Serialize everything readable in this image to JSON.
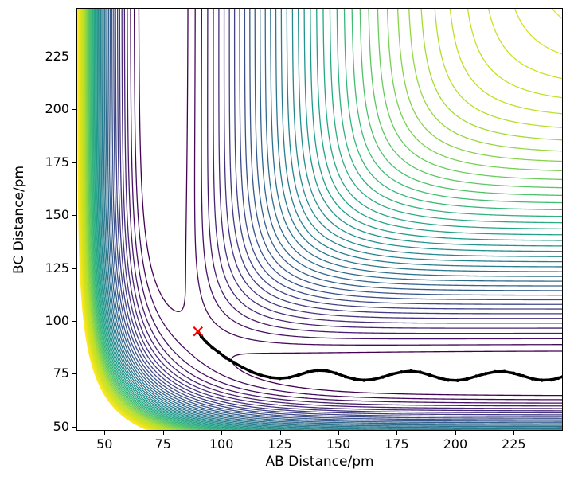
{
  "chart_data": {
    "type": "contour",
    "title": "",
    "xlabel": "AB Distance/pm",
    "ylabel": "BC Distance/pm",
    "xlim": [
      38,
      246
    ],
    "ylim": [
      48,
      248
    ],
    "xticks": [
      50,
      75,
      100,
      125,
      150,
      175,
      200,
      225
    ],
    "yticks": [
      50,
      75,
      100,
      125,
      150,
      175,
      200,
      225
    ],
    "grid": false,
    "legend": "none",
    "colormap": "viridis",
    "colormap_stops": [
      "#440154",
      "#482878",
      "#3e4989",
      "#31688e",
      "#26828e",
      "#1f9e89",
      "#35b779",
      "#6ece58",
      "#b5de2b",
      "#d8e219",
      "#fde725"
    ],
    "n_levels": 46,
    "level_min": -4.55,
    "level_max": -0.05,
    "potential": {
      "model": "LEPS",
      "D": 4.7466,
      "beta": 0.01942,
      "r0": 74.1,
      "sato": 0.18
    },
    "saddle_marker": {
      "x": 90,
      "y": 95,
      "color": "#ff0000",
      "symbol": "x"
    },
    "trajectory": {
      "color": "#000000",
      "points": [
        [
          90,
          95
        ],
        [
          91.5,
          92.5
        ],
        [
          93.5,
          90
        ],
        [
          96,
          87.5
        ],
        [
          99,
          85
        ],
        [
          102,
          82.5
        ],
        [
          105.5,
          80.2
        ],
        [
          109,
          78
        ],
        [
          113,
          75.8
        ],
        [
          117,
          74.2
        ],
        [
          121,
          73.2
        ],
        [
          125,
          72.8
        ],
        [
          129,
          73.2
        ],
        [
          133,
          74.4
        ],
        [
          137,
          75.8
        ],
        [
          141,
          76.6
        ],
        [
          145,
          76.4
        ],
        [
          149,
          75.2
        ],
        [
          153,
          73.6
        ],
        [
          157,
          72.4
        ],
        [
          161,
          71.9
        ],
        [
          165,
          72.3
        ],
        [
          169,
          73.4
        ],
        [
          173,
          74.8
        ],
        [
          177,
          75.8
        ],
        [
          181,
          76.2
        ],
        [
          185,
          75.7
        ],
        [
          189,
          74.4
        ],
        [
          193,
          73
        ],
        [
          197,
          72
        ],
        [
          201,
          71.8
        ],
        [
          205,
          72.5
        ],
        [
          209,
          73.8
        ],
        [
          213,
          75
        ],
        [
          217,
          75.9
        ],
        [
          221,
          76
        ],
        [
          225,
          75.2
        ],
        [
          229,
          73.9
        ],
        [
          233,
          72.6
        ],
        [
          237,
          71.9
        ],
        [
          241,
          72.1
        ],
        [
          244,
          72.9
        ],
        [
          246,
          73.6
        ]
      ]
    }
  }
}
